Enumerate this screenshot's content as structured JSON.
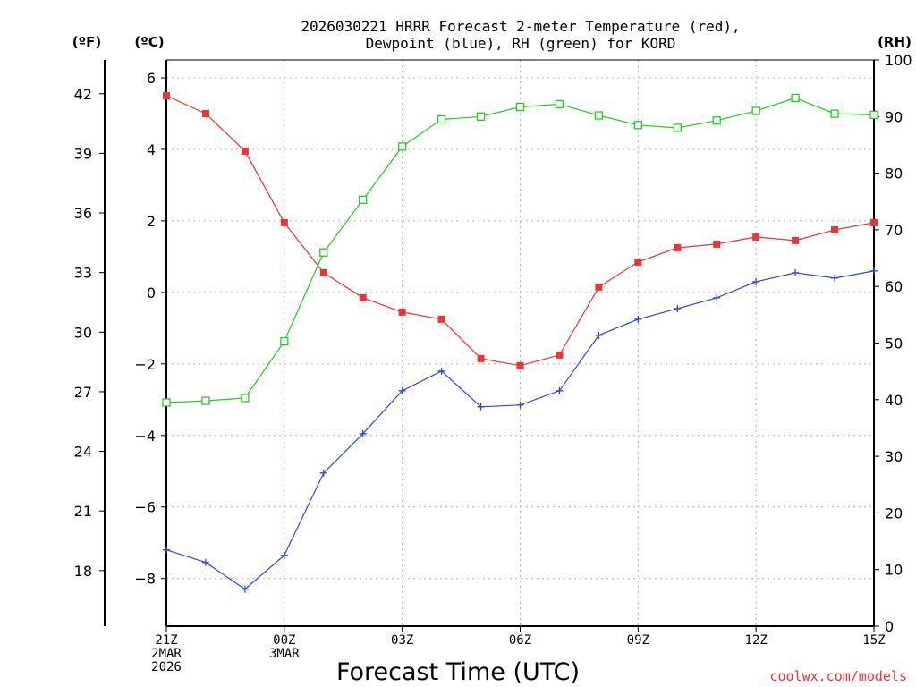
{
  "chart_data": {
    "type": "line",
    "title_line1": "2026030221 HRRR Forecast 2-meter Temperature (red),",
    "title_line2": "Dewpoint (blue), RH (green) for KORD",
    "xlabel": "Forecast Time (UTC)",
    "unit_f": "(ºF)",
    "unit_c": "(ºC)",
    "unit_rh": "(RH)",
    "credit": "coolwx.com/models",
    "x_range": [
      0,
      18
    ],
    "celsius_range": [
      -9.333,
      6.5
    ],
    "rh_range": [
      0,
      100
    ],
    "x_ticks": [
      {
        "x": 0,
        "lines": [
          "21Z",
          "2MAR",
          "2026"
        ]
      },
      {
        "x": 3,
        "lines": [
          "00Z",
          "3MAR"
        ]
      },
      {
        "x": 6,
        "lines": [
          "03Z"
        ]
      },
      {
        "x": 9,
        "lines": [
          "06Z"
        ]
      },
      {
        "x": 12,
        "lines": [
          "09Z"
        ]
      },
      {
        "x": 15,
        "lines": [
          "12Z"
        ]
      },
      {
        "x": 18,
        "lines": [
          "15Z"
        ]
      }
    ],
    "c_ticks": [
      {
        "v": 6,
        "label": "6"
      },
      {
        "v": 4,
        "label": "4"
      },
      {
        "v": 2,
        "label": "2"
      },
      {
        "v": 0,
        "label": "0"
      },
      {
        "v": -2,
        "label": "−2"
      },
      {
        "v": -4,
        "label": "−4"
      },
      {
        "v": -6,
        "label": "−6"
      },
      {
        "v": -8,
        "label": "−8"
      }
    ],
    "f_ticks": [
      {
        "v": 42,
        "label": "42"
      },
      {
        "v": 39,
        "label": "39"
      },
      {
        "v": 36,
        "label": "36"
      },
      {
        "v": 33,
        "label": "33"
      },
      {
        "v": 30,
        "label": "30"
      },
      {
        "v": 27,
        "label": "27"
      },
      {
        "v": 24,
        "label": "24"
      },
      {
        "v": 21,
        "label": "21"
      },
      {
        "v": 18,
        "label": "18"
      }
    ],
    "rh_ticks": [
      {
        "v": 100,
        "label": "100"
      },
      {
        "v": 90,
        "label": "90"
      },
      {
        "v": 80,
        "label": "80"
      },
      {
        "v": 70,
        "label": "70"
      },
      {
        "v": 60,
        "label": "60"
      },
      {
        "v": 50,
        "label": "50"
      },
      {
        "v": 40,
        "label": "40"
      },
      {
        "v": 30,
        "label": "30"
      },
      {
        "v": 20,
        "label": "20"
      },
      {
        "v": 10,
        "label": "10"
      },
      {
        "v": 0,
        "label": "0"
      }
    ],
    "series": [
      {
        "name": "Temperature",
        "axis": "celsius",
        "color": "#ee3333",
        "marker": "filled-square",
        "x": [
          0,
          1,
          2,
          3,
          4,
          5,
          6,
          7,
          8,
          9,
          10,
          11,
          12,
          13,
          14,
          15,
          16,
          17,
          18
        ],
        "values": [
          5.5,
          5.0,
          3.95,
          1.95,
          0.55,
          -0.15,
          -0.55,
          -0.75,
          -1.85,
          -2.05,
          -1.75,
          0.15,
          0.85,
          1.25,
          1.35,
          1.55,
          1.45,
          1.75,
          1.95
        ]
      },
      {
        "name": "Dewpoint",
        "axis": "celsius",
        "color": "#3344dd",
        "marker": "plus",
        "x": [
          0,
          1,
          2,
          3,
          4,
          5,
          6,
          7,
          8,
          9,
          10,
          11,
          12,
          13,
          14,
          15,
          16,
          17,
          18
        ],
        "values": [
          -7.2,
          -7.55,
          -8.3,
          -7.35,
          -5.05,
          -3.95,
          -2.75,
          -2.2,
          -3.2,
          -3.15,
          -2.75,
          -1.2,
          -0.75,
          -0.45,
          -0.15,
          0.3,
          0.55,
          0.4,
          0.6
        ]
      },
      {
        "name": "RH",
        "axis": "rh",
        "color": "#22cc22",
        "marker": "open-square",
        "x": [
          0,
          1,
          2,
          3,
          4,
          5,
          6,
          7,
          8,
          9,
          10,
          11,
          12,
          13,
          14,
          15,
          16,
          17,
          18
        ],
        "values": [
          39.5,
          39.8,
          40.3,
          50.3,
          66.0,
          75.3,
          84.7,
          89.5,
          90.0,
          91.7,
          92.2,
          90.2,
          88.5,
          88.0,
          89.3,
          91.0,
          93.3,
          90.5,
          90.3
        ]
      }
    ]
  }
}
